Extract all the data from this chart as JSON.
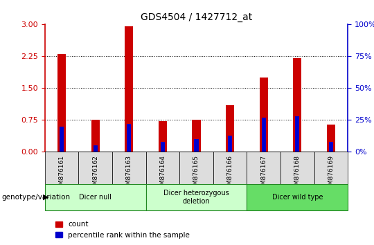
{
  "title": "GDS4504 / 1427712_at",
  "samples": [
    "GSM876161",
    "GSM876162",
    "GSM876163",
    "GSM876164",
    "GSM876165",
    "GSM876166",
    "GSM876167",
    "GSM876168",
    "GSM876169"
  ],
  "count_values": [
    2.3,
    0.75,
    2.95,
    0.72,
    0.75,
    1.1,
    1.75,
    2.2,
    0.65
  ],
  "percentile_values": [
    20,
    5,
    22,
    8,
    10,
    13,
    27,
    28,
    8
  ],
  "bar_color": "#cc0000",
  "percentile_color": "#0000cc",
  "ylim_left": [
    0,
    3
  ],
  "ylim_right": [
    0,
    100
  ],
  "yticks_left": [
    0,
    0.75,
    1.5,
    2.25,
    3
  ],
  "yticks_right": [
    0,
    25,
    50,
    75,
    100
  ],
  "grid_yticks": [
    0.75,
    1.5,
    2.25
  ],
  "groups": [
    {
      "label": "Dicer null",
      "start": 0,
      "end": 3,
      "color": "#ccffcc"
    },
    {
      "label": "Dicer heterozygous\ndeletion",
      "start": 3,
      "end": 6,
      "color": "#ccffcc"
    },
    {
      "label": "Dicer wild type",
      "start": 6,
      "end": 9,
      "color": "#66dd66"
    }
  ],
  "legend_count_label": "count",
  "legend_percentile_label": "percentile rank within the sample",
  "genotype_label": "genotype/variation",
  "bar_width": 0.25,
  "tick_box_color": "#dddddd",
  "group_border_color": "#228822",
  "background_color": "#ffffff"
}
